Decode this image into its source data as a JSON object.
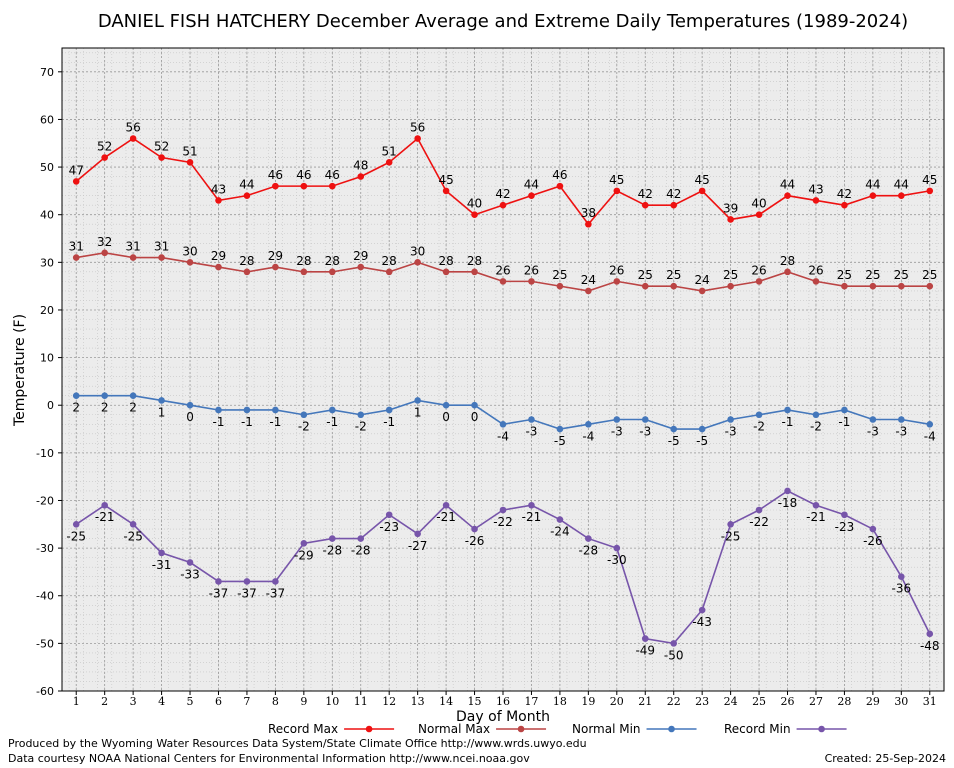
{
  "chart_data": {
    "type": "line",
    "title": "DANIEL FISH HATCHERY December Average and Extreme Daily Temperatures (1989-2024)",
    "xlabel": "Day of Month",
    "ylabel": "Temperature (F)",
    "ylim": [
      -60,
      75
    ],
    "yticks": [
      -60,
      -50,
      -40,
      -30,
      -20,
      -10,
      0,
      10,
      20,
      30,
      40,
      50,
      60,
      70
    ],
    "x": [
      1,
      2,
      3,
      4,
      5,
      6,
      7,
      8,
      9,
      10,
      11,
      12,
      13,
      14,
      15,
      16,
      17,
      18,
      19,
      20,
      21,
      22,
      23,
      24,
      25,
      26,
      27,
      28,
      29,
      30,
      31
    ],
    "grid": true,
    "legend_position": "bottom",
    "series": [
      {
        "name": "Record Max",
        "color": "#ee1111",
        "label_position": "above",
        "values": [
          47,
          52,
          56,
          52,
          51,
          43,
          44,
          46,
          46,
          46,
          48,
          51,
          56,
          45,
          40,
          42,
          44,
          46,
          38,
          45,
          42,
          42,
          45,
          39,
          40,
          44,
          43,
          42,
          44,
          44,
          45
        ]
      },
      {
        "name": "Normal Max",
        "color": "#bb4444",
        "label_position": "above",
        "values": [
          31,
          32,
          31,
          31,
          30,
          29,
          28,
          29,
          28,
          28,
          29,
          28,
          30,
          28,
          28,
          26,
          26,
          25,
          24,
          26,
          25,
          25,
          24,
          25,
          26,
          28,
          26,
          25,
          25,
          25,
          25
        ]
      },
      {
        "name": "Normal Min",
        "color": "#4477bb",
        "label_position": "below",
        "values": [
          2,
          2,
          2,
          1,
          0,
          -1,
          -1,
          -1,
          -2,
          -1,
          -2,
          -1,
          1,
          0,
          0,
          -4,
          -3,
          -5,
          -4,
          -3,
          -3,
          -5,
          -5,
          -3,
          -2,
          -1,
          -2,
          -1,
          -3,
          -3,
          -4
        ]
      },
      {
        "name": "Record Min",
        "color": "#7755aa",
        "label_position": "below",
        "values": [
          -25,
          -21,
          -25,
          -31,
          -33,
          -37,
          -37,
          -37,
          -29,
          -28,
          -28,
          -23,
          -27,
          -21,
          -26,
          -22,
          -21,
          -24,
          -28,
          -30,
          -49,
          -50,
          -43,
          -25,
          -22,
          -18,
          -21,
          -23,
          -26,
          -36,
          -48
        ]
      }
    ]
  },
  "footer": {
    "produced_by": "Produced by the Wyoming Water Resources Data System/State Climate Office http://www.wrds.uwyo.edu",
    "data_courtesy": "Data courtesy NOAA National Centers for Environmental Information http://www.ncei.noaa.gov",
    "created": "Created:  25-Sep-2024"
  }
}
